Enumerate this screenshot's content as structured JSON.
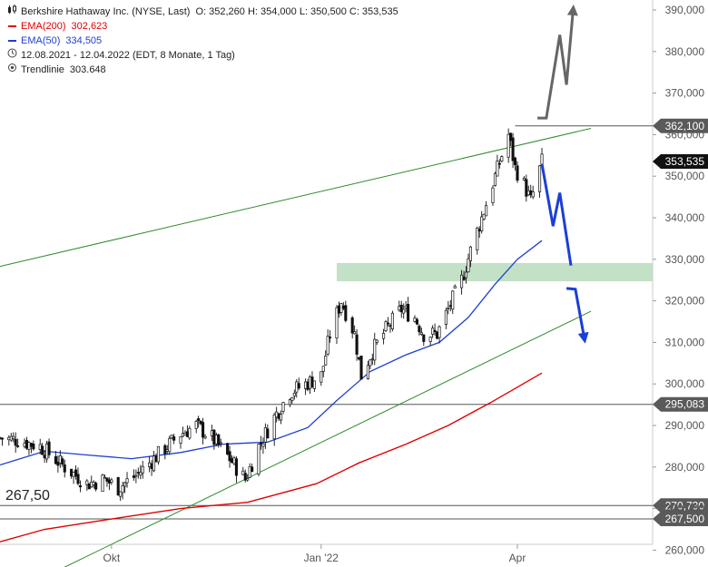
{
  "legend": {
    "title": "Berkshire Hathaway Inc. (NYSE, Last)",
    "ohlc": "O: 352,260  H: 354,000  L: 350,500  C: 353,535",
    "ema200_label": "EMA(200)",
    "ema200_value": "302,623",
    "ema50_label": "EMA(50)",
    "ema50_value": "334,505",
    "period": "12.08.2021 - 12.04.2022   (EDT, 8 Monate, 1 Tag)",
    "trendline_label": "Trendlinie",
    "trendline_value": "303.648"
  },
  "big_label": "267,50",
  "colors": {
    "candles": "#111111",
    "ema200": "#e00000",
    "ema50": "#1f3fcf",
    "trendline": "#2e8b2e",
    "zone": "#b7dcbc",
    "projection_blue": "#1a3fd6",
    "projection_gray": "#666666",
    "hline": "#555555",
    "grid": "#d9d9d9"
  },
  "chart_data": {
    "type": "candlestick",
    "x_range": [
      "2021-08-12",
      "2022-04-12"
    ],
    "ylim": [
      252000,
      393000
    ],
    "y_ticks": [
      "390,000",
      "380,000",
      "370,000",
      "360,000",
      "350,000",
      "340,000",
      "330,000",
      "320,000",
      "310,000",
      "300,000",
      "290,000",
      "280,000",
      "270,000",
      "260,000"
    ],
    "y_tick_values": [
      390000,
      380000,
      370000,
      360000,
      350000,
      340000,
      330000,
      320000,
      310000,
      300000,
      290000,
      280000,
      270000,
      260000
    ],
    "x_ticks": [
      {
        "label": "Okt",
        "date": "2021-10-01"
      },
      {
        "label": "Jan '22",
        "date": "2022-01-03"
      },
      {
        "label": "Apr",
        "date": "2022-04-01"
      }
    ],
    "price_path": [
      [
        "2021-08-12",
        287000
      ],
      [
        "2021-08-20",
        286500
      ],
      [
        "2021-08-30",
        285000
      ],
      [
        "2021-09-10",
        280000
      ],
      [
        "2021-09-20",
        276000
      ],
      [
        "2021-09-28",
        277000
      ],
      [
        "2021-10-04",
        275000
      ],
      [
        "2021-10-12",
        278000
      ],
      [
        "2021-10-22",
        283000
      ],
      [
        "2021-11-01",
        288000
      ],
      [
        "2021-11-08",
        290000
      ],
      [
        "2021-11-15",
        287000
      ],
      [
        "2021-11-23",
        282000
      ],
      [
        "2021-11-30",
        277000
      ],
      [
        "2021-12-06",
        285000
      ],
      [
        "2021-12-13",
        292000
      ],
      [
        "2021-12-20",
        298000
      ],
      [
        "2021-12-27",
        300000
      ],
      [
        "2022-01-03",
        302000
      ],
      [
        "2022-01-07",
        312000
      ],
      [
        "2022-01-12",
        320000
      ],
      [
        "2022-01-18",
        312000
      ],
      [
        "2022-01-21",
        302000
      ],
      [
        "2022-01-26",
        308000
      ],
      [
        "2022-02-01",
        313000
      ],
      [
        "2022-02-08",
        318000
      ],
      [
        "2022-02-14",
        316000
      ],
      [
        "2022-02-18",
        312000
      ],
      [
        "2022-02-24",
        312000
      ],
      [
        "2022-03-01",
        318000
      ],
      [
        "2022-03-07",
        325000
      ],
      [
        "2022-03-11",
        332000
      ],
      [
        "2022-03-16",
        340000
      ],
      [
        "2022-03-22",
        350000
      ],
      [
        "2022-03-28",
        360000
      ],
      [
        "2022-03-31",
        352000
      ],
      [
        "2022-04-04",
        348000
      ],
      [
        "2022-04-07",
        344000
      ],
      [
        "2022-04-12",
        353535
      ]
    ],
    "ema50": [
      [
        "2021-08-12",
        280500
      ],
      [
        "2021-09-01",
        283800
      ],
      [
        "2021-09-20",
        282900
      ],
      [
        "2021-10-10",
        282000
      ],
      [
        "2021-11-01",
        283500
      ],
      [
        "2021-11-20",
        285500
      ],
      [
        "2021-12-10",
        286000
      ],
      [
        "2021-12-28",
        289500
      ],
      [
        "2022-01-10",
        296000
      ],
      [
        "2022-01-25",
        303000
      ],
      [
        "2022-02-10",
        307000
      ],
      [
        "2022-02-25",
        310000
      ],
      [
        "2022-03-10",
        316000
      ],
      [
        "2022-03-22",
        324000
      ],
      [
        "2022-04-01",
        330000
      ],
      [
        "2022-04-12",
        334505
      ]
    ],
    "ema200": [
      [
        "2021-08-12",
        262000
      ],
      [
        "2021-09-01",
        265000
      ],
      [
        "2021-10-01",
        267500
      ],
      [
        "2021-11-01",
        270000
      ],
      [
        "2021-12-01",
        271500
      ],
      [
        "2022-01-01",
        276000
      ],
      [
        "2022-01-20",
        281000
      ],
      [
        "2022-02-10",
        285500
      ],
      [
        "2022-03-01",
        290000
      ],
      [
        "2022-03-20",
        295500
      ],
      [
        "2022-04-12",
        302623
      ]
    ],
    "trendlines": [
      {
        "from": [
          "2021-08-12",
          328300
        ],
        "to": [
          "2022-05-04",
          361500
        ]
      },
      {
        "from": [
          "2021-08-26",
          252000
        ],
        "to": [
          "2022-05-04",
          317500
        ]
      }
    ],
    "horizontal_levels": [
      362100,
      295083,
      270730,
      267500
    ],
    "level_labels": [
      "362,100",
      "295,083",
      "270,730",
      "267,500"
    ],
    "resistance_top_from": "2022-03-31",
    "last_price": 353535,
    "last_price_label": "353,535",
    "zone": {
      "from": "2022-01-10",
      "to": "2022-05-04",
      "y1": 324700,
      "y2": 329100
    },
    "projection_blue": [
      [
        [
          "2022-04-12",
          353000
        ],
        [
          "2022-04-17",
          338000
        ],
        [
          "2022-04-20",
          346000
        ],
        [
          "2022-04-25",
          328500
        ]
      ],
      [
        [
          "2022-04-23",
          323000
        ],
        [
          "2022-04-27",
          322800
        ],
        [
          "2022-05-01",
          311000
        ]
      ]
    ],
    "projection_gray": [
      [
        "2022-04-10",
        364000
      ],
      [
        "2022-04-14",
        364000
      ],
      [
        "2022-04-20",
        384000
      ],
      [
        "2022-04-23",
        372000
      ],
      [
        "2022-04-26",
        390000
      ]
    ]
  }
}
